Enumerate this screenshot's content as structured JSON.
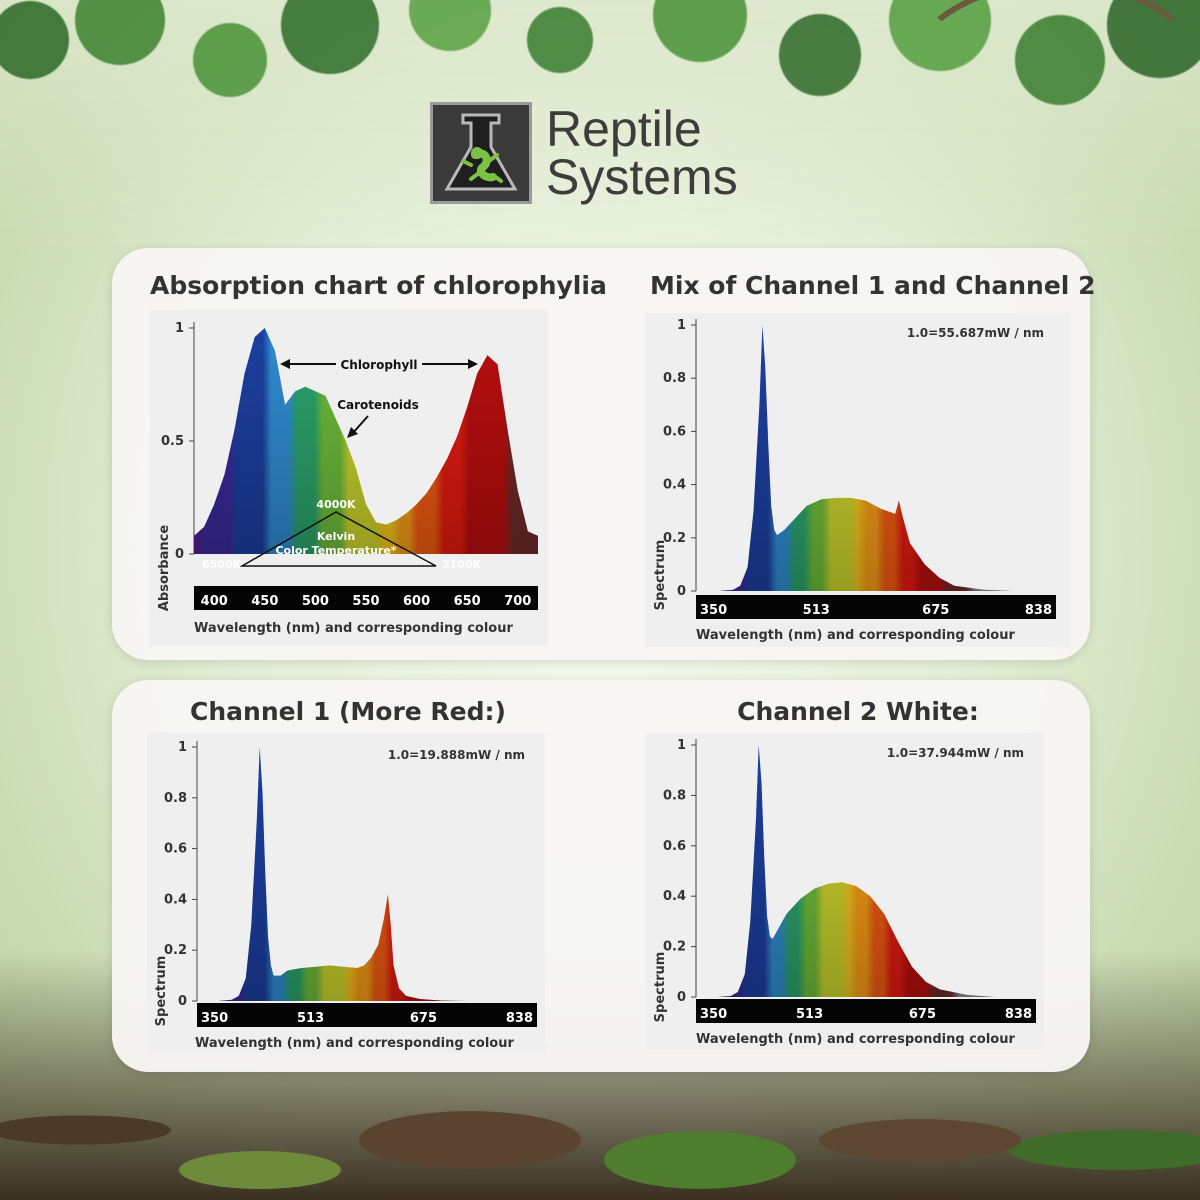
{
  "brand": {
    "name_line1": "Reptile",
    "name_line2": "Systems",
    "logo_icon": "gecko-flask-icon"
  },
  "chart_data": [
    {
      "type": "area",
      "title": "Absorption chart of chlorophylia",
      "xlabel": "Wavelength (nm) and corresponding colour",
      "ylabel": "Absorbance",
      "xlim": [
        380,
        720
      ],
      "ylim": [
        0,
        1
      ],
      "xticks": [
        400,
        450,
        500,
        550,
        600,
        650,
        700
      ],
      "yticks": [
        {
          "v": 0,
          "label": "0"
        },
        {
          "v": 0.5,
          "label": "0.5"
        },
        {
          "v": 1,
          "label": "1"
        }
      ],
      "x": [
        380,
        390,
        400,
        410,
        420,
        430,
        440,
        450,
        460,
        470,
        480,
        490,
        500,
        510,
        520,
        530,
        540,
        550,
        560,
        570,
        580,
        590,
        600,
        610,
        620,
        630,
        640,
        650,
        660,
        670,
        680,
        690,
        700,
        710,
        720
      ],
      "y": [
        0.08,
        0.12,
        0.22,
        0.35,
        0.55,
        0.8,
        0.96,
        1.0,
        0.9,
        0.66,
        0.72,
        0.74,
        0.72,
        0.7,
        0.6,
        0.5,
        0.38,
        0.22,
        0.14,
        0.13,
        0.15,
        0.18,
        0.22,
        0.27,
        0.34,
        0.42,
        0.52,
        0.65,
        0.8,
        0.88,
        0.84,
        0.55,
        0.28,
        0.1,
        0.08
      ],
      "annotations": {
        "chlorophyll": "Chlorophyll",
        "carotenoids": "Carotenoids",
        "k4000": "4000K",
        "kelvin": "Kelvin",
        "color_temp": "Color Temperature*",
        "k6500": "6500K",
        "k2100": "2100K"
      }
    },
    {
      "type": "area",
      "title": "Mix of Channel 1 and Channel 2",
      "xlabel": "Wavelength (nm) and corresponding colour",
      "ylabel": "Spectrum",
      "scale_note": "1.0=55.687mW / nm",
      "xlim": [
        350,
        838
      ],
      "ylim": [
        0,
        1
      ],
      "xticks": [
        350,
        513,
        675,
        838
      ],
      "yticks": [
        {
          "v": 0,
          "label": "0"
        },
        {
          "v": 0.2,
          "label": "0.2"
        },
        {
          "v": 0.4,
          "label": "0.4"
        },
        {
          "v": 0.6,
          "label": "0.6"
        },
        {
          "v": 0.8,
          "label": "0.8"
        },
        {
          "v": 1,
          "label": "1"
        }
      ],
      "x": [
        380,
        400,
        410,
        420,
        428,
        436,
        440,
        444,
        448,
        452,
        456,
        460,
        470,
        480,
        500,
        520,
        540,
        560,
        580,
        600,
        610,
        620,
        625,
        630,
        640,
        660,
        680,
        700,
        740,
        780
      ],
      "y": [
        0,
        0.004,
        0.02,
        0.09,
        0.3,
        0.7,
        1.0,
        0.84,
        0.55,
        0.32,
        0.23,
        0.21,
        0.23,
        0.26,
        0.32,
        0.345,
        0.35,
        0.35,
        0.34,
        0.31,
        0.3,
        0.29,
        0.34,
        0.28,
        0.18,
        0.1,
        0.05,
        0.02,
        0.005,
        0
      ]
    },
    {
      "type": "area",
      "title": "Channel 1 (More Red:)",
      "xlabel": "Wavelength (nm) and corresponding colour",
      "ylabel": "Spectrum",
      "scale_note": "1.0=19.888mW / nm",
      "xlim": [
        350,
        838
      ],
      "ylim": [
        0,
        1
      ],
      "xticks": [
        350,
        513,
        675,
        838
      ],
      "yticks": [
        {
          "v": 0,
          "label": "0"
        },
        {
          "v": 0.2,
          "label": "0.2"
        },
        {
          "v": 0.4,
          "label": "0.4"
        },
        {
          "v": 0.6,
          "label": "0.6"
        },
        {
          "v": 0.8,
          "label": "0.8"
        },
        {
          "v": 1,
          "label": "1"
        }
      ],
      "x": [
        380,
        400,
        410,
        420,
        428,
        436,
        440,
        444,
        448,
        452,
        456,
        460,
        470,
        480,
        500,
        520,
        540,
        560,
        580,
        590,
        600,
        610,
        618,
        624,
        628,
        632,
        640,
        650,
        670,
        700,
        740
      ],
      "y": [
        0,
        0.005,
        0.02,
        0.09,
        0.3,
        0.72,
        1.0,
        0.82,
        0.5,
        0.25,
        0.14,
        0.1,
        0.1,
        0.12,
        0.13,
        0.135,
        0.14,
        0.135,
        0.13,
        0.14,
        0.17,
        0.22,
        0.32,
        0.42,
        0.3,
        0.14,
        0.05,
        0.02,
        0.008,
        0.002,
        0
      ]
    },
    {
      "type": "area",
      "title": "Channel 2 White:",
      "xlabel": "Wavelength (nm) and corresponding colour",
      "ylabel": "Spectrum",
      "scale_note": "1.0=37.944mW / nm",
      "xlim": [
        350,
        838
      ],
      "ylim": [
        0,
        1
      ],
      "xticks": [
        350,
        513,
        675,
        838
      ],
      "yticks": [
        {
          "v": 0,
          "label": "0"
        },
        {
          "v": 0.2,
          "label": "0.2"
        },
        {
          "v": 0.4,
          "label": "0.4"
        },
        {
          "v": 0.6,
          "label": "0.6"
        },
        {
          "v": 0.8,
          "label": "0.8"
        },
        {
          "v": 1,
          "label": "1"
        }
      ],
      "x": [
        380,
        400,
        410,
        420,
        428,
        436,
        440,
        444,
        448,
        452,
        456,
        460,
        470,
        480,
        500,
        520,
        540,
        560,
        580,
        600,
        620,
        640,
        660,
        680,
        700,
        740,
        780
      ],
      "y": [
        0,
        0.004,
        0.02,
        0.09,
        0.3,
        0.7,
        1.0,
        0.85,
        0.55,
        0.32,
        0.24,
        0.23,
        0.28,
        0.33,
        0.39,
        0.43,
        0.45,
        0.455,
        0.44,
        0.4,
        0.33,
        0.22,
        0.12,
        0.06,
        0.03,
        0.008,
        0
      ]
    }
  ]
}
